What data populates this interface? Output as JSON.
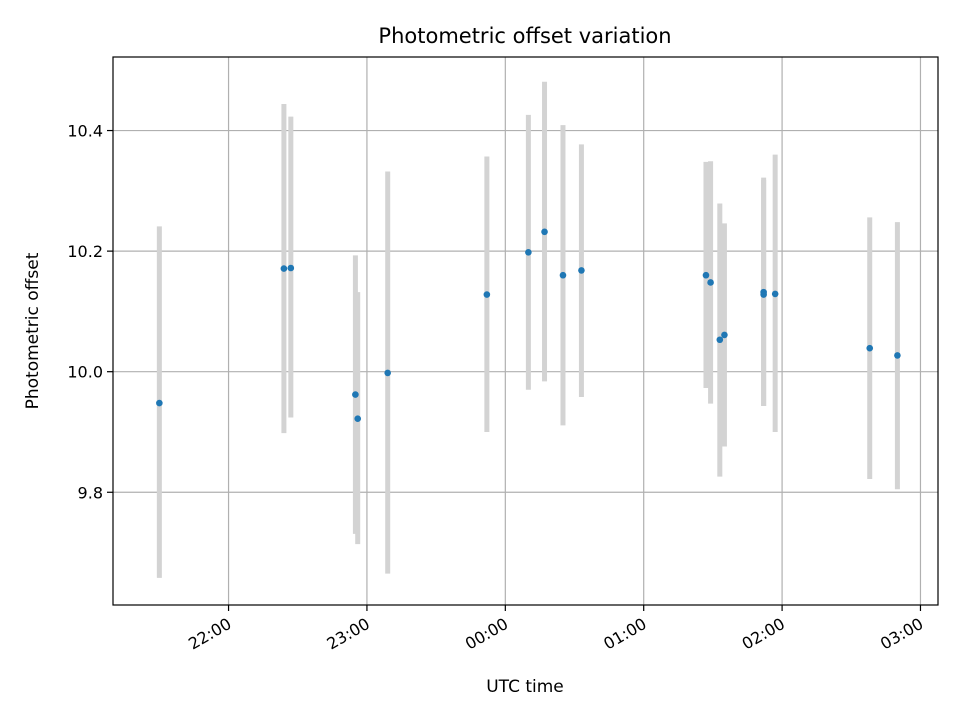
{
  "chart_data": {
    "type": "scatter",
    "title": "Photometric offset variation",
    "xlabel": "UTC time",
    "ylabel": "Photometric offset",
    "x_tick_labels": [
      "22:00",
      "23:00",
      "00:00",
      "01:00",
      "02:00",
      "03:00"
    ],
    "y_tick_labels": [
      "9.8",
      "10.0",
      "10.2",
      "10.4"
    ],
    "y_ticks": [
      9.8,
      10.0,
      10.2,
      10.4
    ],
    "ylim": [
      9.613,
      10.522
    ],
    "xlim_minutes_from_first_tick": [
      -50.1,
      307.6
    ],
    "grid": true,
    "marker_color": "#1f77b4",
    "errorbar_color": "#d3d3d3",
    "points": [
      {
        "time": "21:30",
        "y": 9.948,
        "err_low": 9.658,
        "err_high": 10.241
      },
      {
        "time": "22:24",
        "y": 10.171,
        "err_low": 9.898,
        "err_high": 10.444
      },
      {
        "time": "22:27",
        "y": 10.172,
        "err_low": 9.924,
        "err_high": 10.423
      },
      {
        "time": "22:55",
        "y": 9.962,
        "err_low": 9.731,
        "err_high": 10.193
      },
      {
        "time": "22:56",
        "y": 9.922,
        "err_low": 9.714,
        "err_high": 10.132
      },
      {
        "time": "23:09",
        "y": 9.998,
        "err_low": 9.665,
        "err_high": 10.332
      },
      {
        "time": "23:52",
        "y": 10.128,
        "err_low": 9.9,
        "err_high": 10.357
      },
      {
        "time": "00:10",
        "y": 10.198,
        "err_low": 9.97,
        "err_high": 10.426
      },
      {
        "time": "00:17",
        "y": 10.232,
        "err_low": 9.984,
        "err_high": 10.481
      },
      {
        "time": "00:25",
        "y": 10.16,
        "err_low": 9.911,
        "err_high": 10.409
      },
      {
        "time": "00:33",
        "y": 10.168,
        "err_low": 9.958,
        "err_high": 10.377
      },
      {
        "time": "01:27",
        "y": 10.16,
        "err_low": 9.973,
        "err_high": 10.348
      },
      {
        "time": "01:29",
        "y": 10.148,
        "err_low": 9.947,
        "err_high": 10.349
      },
      {
        "time": "01:33",
        "y": 10.053,
        "err_low": 9.826,
        "err_high": 10.279
      },
      {
        "time": "01:35",
        "y": 10.061,
        "err_low": 9.876,
        "err_high": 10.246
      },
      {
        "time": "01:52",
        "y": 10.132,
        "err_low": 9.943,
        "err_high": 10.322
      },
      {
        "time": "01:52",
        "y": 10.128,
        "err_low": 9.943,
        "err_high": 10.318
      },
      {
        "time": "01:57",
        "y": 10.129,
        "err_low": 9.9,
        "err_high": 10.36
      },
      {
        "time": "02:38",
        "y": 10.039,
        "err_low": 9.822,
        "err_high": 10.256
      },
      {
        "time": "02:50",
        "y": 10.027,
        "err_low": 9.805,
        "err_high": 10.248
      }
    ]
  }
}
